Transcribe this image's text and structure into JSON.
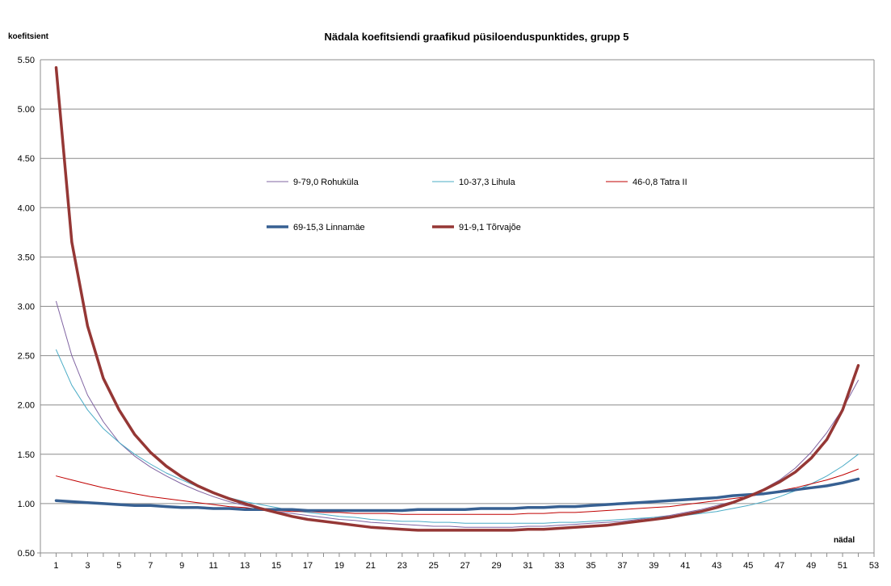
{
  "chart_data": {
    "type": "line",
    "title": "Nädala koefitsiendi graafikud püsiloenduspunktides, grupp 5",
    "ylabel": "koefitsient",
    "xlabel": "nädal",
    "ylim": [
      0.5,
      5.5
    ],
    "yticks": [
      "0.50",
      "1.00",
      "1.50",
      "2.00",
      "2.50",
      "3.00",
      "3.50",
      "4.00",
      "4.50",
      "5.00",
      "5.50"
    ],
    "xlim": [
      0,
      53
    ],
    "xticks": [
      1,
      3,
      5,
      7,
      9,
      11,
      13,
      15,
      17,
      19,
      21,
      23,
      25,
      27,
      29,
      31,
      33,
      35,
      37,
      39,
      41,
      43,
      45,
      47,
      49,
      51,
      53
    ],
    "grid": "horizontal",
    "x": [
      1,
      2,
      3,
      4,
      5,
      6,
      7,
      8,
      9,
      10,
      11,
      12,
      13,
      14,
      15,
      16,
      17,
      18,
      19,
      20,
      21,
      22,
      23,
      24,
      25,
      26,
      27,
      28,
      29,
      30,
      31,
      32,
      33,
      34,
      35,
      36,
      37,
      38,
      39,
      40,
      41,
      42,
      43,
      44,
      45,
      46,
      47,
      48,
      49,
      50,
      51,
      52
    ],
    "series": [
      {
        "name": "9-79,0 Rohuküla",
        "color": "#8064a2",
        "values": [
          3.05,
          2.5,
          2.1,
          1.83,
          1.62,
          1.48,
          1.37,
          1.28,
          1.2,
          1.13,
          1.07,
          1.02,
          0.98,
          0.95,
          0.92,
          0.9,
          0.88,
          0.86,
          0.84,
          0.83,
          0.81,
          0.8,
          0.79,
          0.78,
          0.77,
          0.77,
          0.76,
          0.76,
          0.76,
          0.76,
          0.77,
          0.77,
          0.78,
          0.79,
          0.8,
          0.81,
          0.82,
          0.84,
          0.86,
          0.88,
          0.91,
          0.94,
          0.98,
          1.02,
          1.08,
          1.15,
          1.24,
          1.36,
          1.52,
          1.72,
          1.96,
          2.25
        ]
      },
      {
        "name": "10-37,3 Lihula",
        "color": "#4bacc6",
        "values": [
          2.56,
          2.2,
          1.95,
          1.76,
          1.62,
          1.5,
          1.4,
          1.31,
          1.24,
          1.17,
          1.11,
          1.06,
          1.02,
          0.99,
          0.96,
          0.93,
          0.91,
          0.89,
          0.87,
          0.86,
          0.84,
          0.83,
          0.82,
          0.82,
          0.81,
          0.81,
          0.8,
          0.8,
          0.8,
          0.8,
          0.8,
          0.8,
          0.81,
          0.81,
          0.82,
          0.83,
          0.84,
          0.85,
          0.86,
          0.87,
          0.88,
          0.9,
          0.92,
          0.95,
          0.98,
          1.02,
          1.07,
          1.13,
          1.2,
          1.28,
          1.38,
          1.5
        ]
      },
      {
        "name": "46-0,8 Tatra II",
        "color": "#c00000",
        "values": [
          1.28,
          1.24,
          1.2,
          1.16,
          1.13,
          1.1,
          1.07,
          1.05,
          1.03,
          1.01,
          0.99,
          0.97,
          0.96,
          0.94,
          0.93,
          0.92,
          0.92,
          0.91,
          0.91,
          0.9,
          0.9,
          0.9,
          0.89,
          0.89,
          0.89,
          0.89,
          0.89,
          0.89,
          0.89,
          0.89,
          0.9,
          0.9,
          0.91,
          0.91,
          0.92,
          0.93,
          0.94,
          0.95,
          0.96,
          0.97,
          0.99,
          1.01,
          1.03,
          1.05,
          1.07,
          1.1,
          1.13,
          1.16,
          1.2,
          1.24,
          1.29,
          1.35
        ]
      },
      {
        "name": "69-15,3 Linnamäe",
        "color": "#376092",
        "values": [
          1.03,
          1.02,
          1.01,
          1.0,
          0.99,
          0.98,
          0.98,
          0.97,
          0.96,
          0.96,
          0.95,
          0.95,
          0.94,
          0.94,
          0.94,
          0.94,
          0.93,
          0.93,
          0.93,
          0.93,
          0.93,
          0.93,
          0.93,
          0.94,
          0.94,
          0.94,
          0.94,
          0.95,
          0.95,
          0.95,
          0.96,
          0.96,
          0.97,
          0.97,
          0.98,
          0.99,
          1.0,
          1.01,
          1.02,
          1.03,
          1.04,
          1.05,
          1.06,
          1.08,
          1.09,
          1.1,
          1.12,
          1.14,
          1.16,
          1.18,
          1.21,
          1.25
        ]
      },
      {
        "name": "91-9,1 Tõrvajõe",
        "color": "#953735",
        "values": [
          5.42,
          3.65,
          2.8,
          2.27,
          1.95,
          1.7,
          1.52,
          1.38,
          1.27,
          1.18,
          1.11,
          1.05,
          1.0,
          0.95,
          0.91,
          0.87,
          0.84,
          0.82,
          0.8,
          0.78,
          0.76,
          0.75,
          0.74,
          0.73,
          0.73,
          0.73,
          0.73,
          0.73,
          0.73,
          0.73,
          0.74,
          0.74,
          0.75,
          0.76,
          0.77,
          0.78,
          0.8,
          0.82,
          0.84,
          0.86,
          0.89,
          0.92,
          0.96,
          1.01,
          1.07,
          1.14,
          1.22,
          1.32,
          1.46,
          1.65,
          1.95,
          2.4
        ]
      }
    ]
  }
}
